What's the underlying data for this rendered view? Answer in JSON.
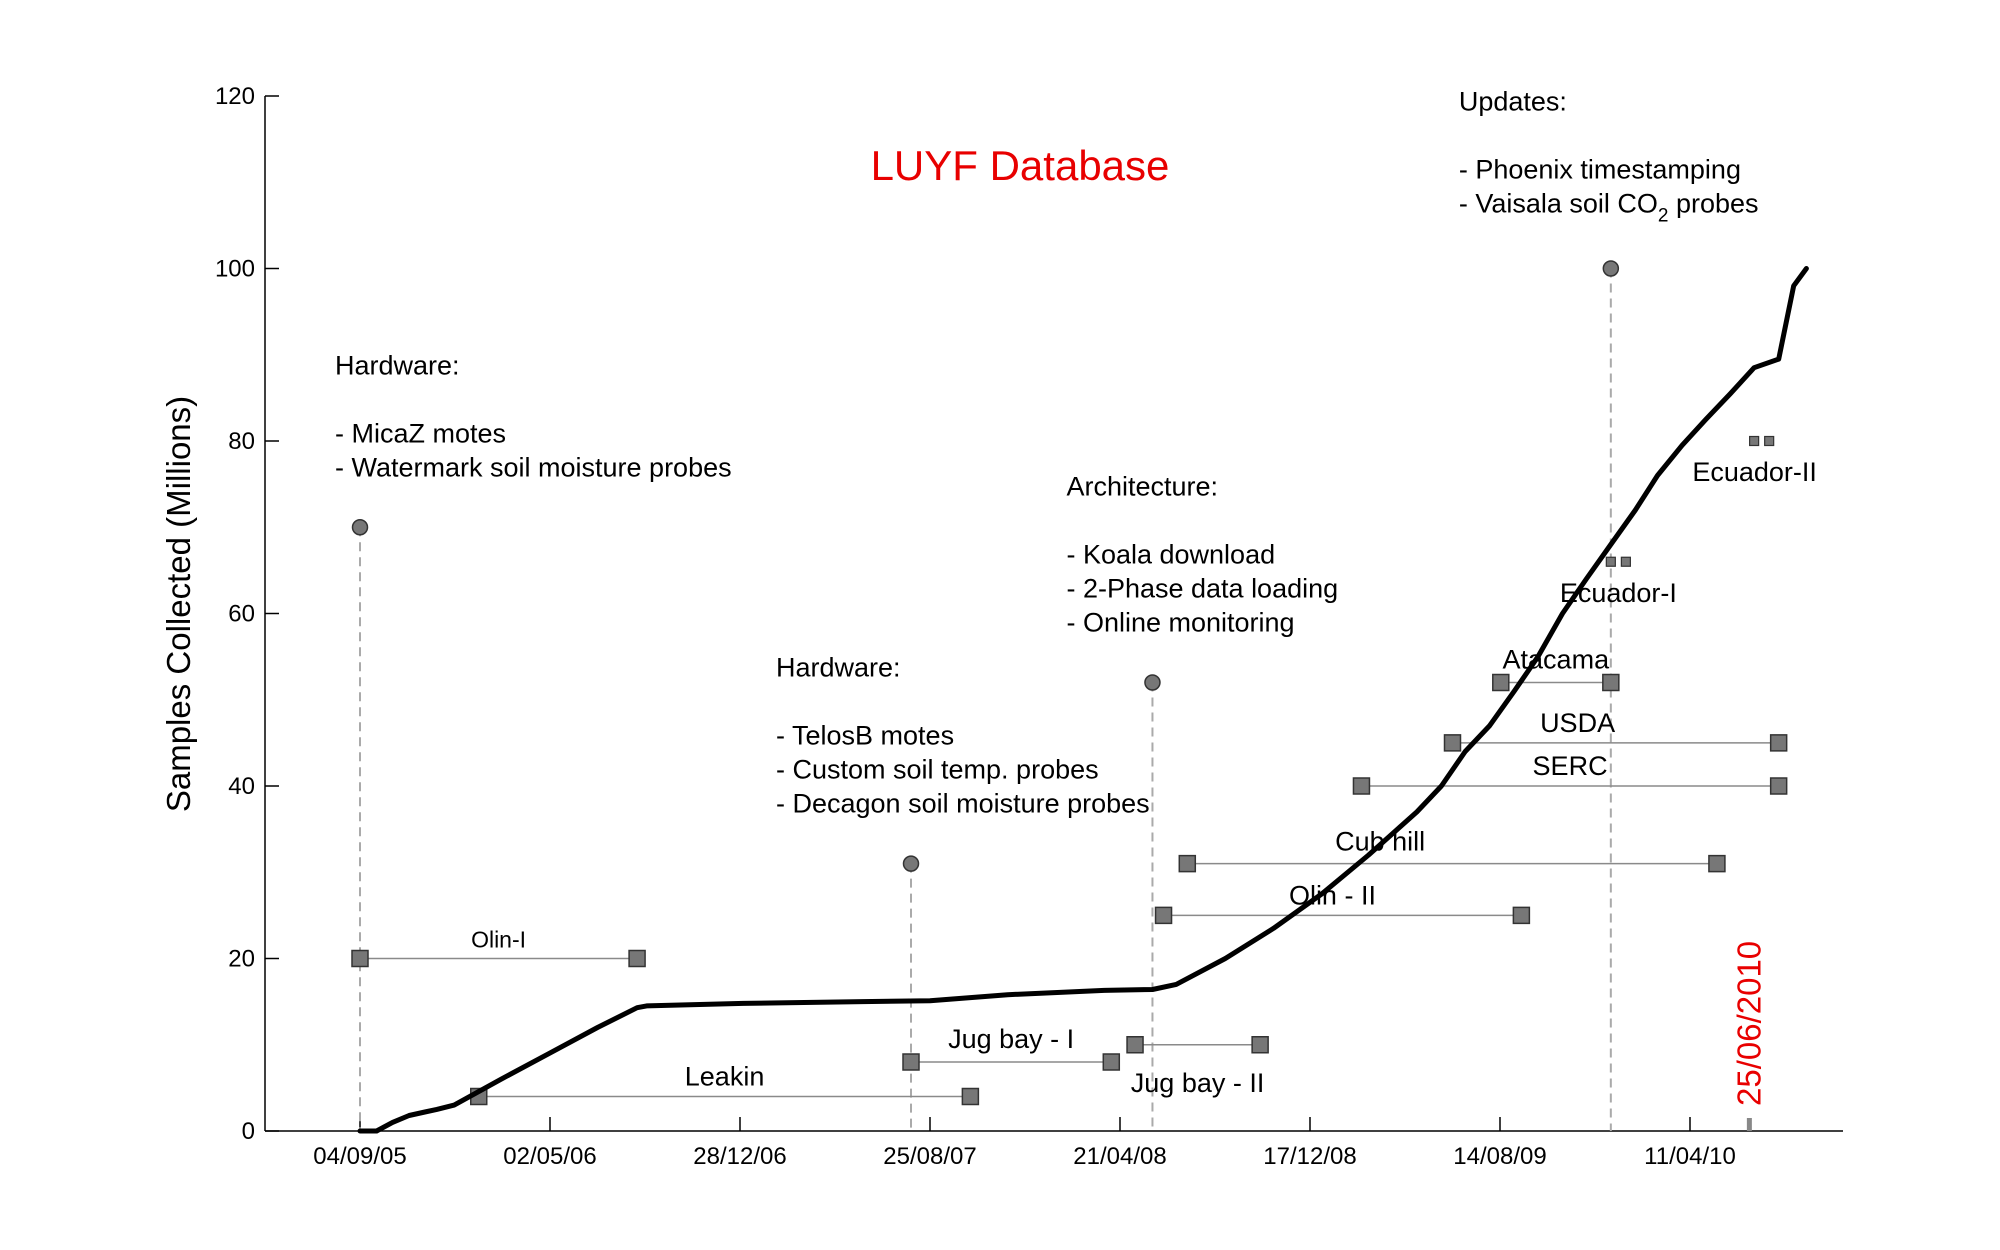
{
  "chart_data": {
    "type": "line",
    "title": "LUYF Database",
    "ylabel": "Samples Collected (Millions)",
    "xlabel": "",
    "ylim": [
      0,
      120
    ],
    "y_ticks": [
      0,
      20,
      40,
      60,
      80,
      100,
      120
    ],
    "x_tick_labels": [
      "04/09/05",
      "02/05/06",
      "28/12/06",
      "25/08/07",
      "21/04/08",
      "17/12/08",
      "14/08/09",
      "11/04/10"
    ],
    "grid": false,
    "series": [
      {
        "values_desc": "cumulative samples collected",
        "points": [
          [
            "2005-09-04",
            0
          ],
          [
            "2005-09-25",
            0
          ],
          [
            "2005-10-15",
            1
          ],
          [
            "2005-11-05",
            1.8
          ],
          [
            "2005-11-25",
            2.2
          ],
          [
            "2005-12-10",
            2.5
          ],
          [
            "2006-01-01",
            3
          ],
          [
            "2006-03-01",
            6
          ],
          [
            "2006-05-01",
            9
          ],
          [
            "2006-07-01",
            12
          ],
          [
            "2006-08-20",
            14.3
          ],
          [
            "2006-09-01",
            14.5
          ],
          [
            "2007-01-01",
            14.8
          ],
          [
            "2007-06-01",
            15
          ],
          [
            "2007-08-25",
            15.1
          ],
          [
            "2007-12-01",
            15.8
          ],
          [
            "2008-04-01",
            16.3
          ],
          [
            "2008-06-01",
            16.4
          ],
          [
            "2008-07-01",
            17
          ],
          [
            "2008-09-01",
            20
          ],
          [
            "2008-11-01",
            23.5
          ],
          [
            "2009-01-01",
            27.5
          ],
          [
            "2009-03-01",
            32
          ],
          [
            "2009-05-01",
            37
          ],
          [
            "2009-06-01",
            40
          ],
          [
            "2009-07-01",
            44
          ],
          [
            "2009-08-01",
            47
          ],
          [
            "2009-09-01",
            51
          ],
          [
            "2009-10-01",
            55
          ],
          [
            "2009-11-01",
            60
          ],
          [
            "2009-12-01",
            64
          ],
          [
            "2010-01-01",
            68
          ],
          [
            "2010-02-01",
            72
          ],
          [
            "2010-03-01",
            76
          ],
          [
            "2010-04-01",
            79.5
          ],
          [
            "2010-05-01",
            82.5
          ],
          [
            "2010-06-01",
            85.5
          ],
          [
            "2010-07-01",
            88.5
          ],
          [
            "2010-08-01",
            89.5
          ],
          [
            "2010-08-20",
            98
          ],
          [
            "2010-09-05",
            100
          ]
        ]
      }
    ],
    "projects": [
      {
        "label": "Olin-I",
        "y": 20,
        "start": "2005-09-04",
        "end": "2006-08-20",
        "label_size": "small"
      },
      {
        "label": "Leakin",
        "y": 4,
        "start": "2006-02-01",
        "end": "2007-10-15"
      },
      {
        "label": "Jug bay - I",
        "y": 8,
        "start": "2007-08-01",
        "end": "2008-04-10"
      },
      {
        "label": "Jug bay - II",
        "y": 10,
        "start": "2008-05-10",
        "end": "2008-10-15"
      },
      {
        "label": "Olin - II",
        "y": 25,
        "start": "2008-06-15",
        "end": "2009-09-10"
      },
      {
        "label": "Cub hill",
        "y": 31,
        "start": "2008-07-15",
        "end": "2010-05-15"
      },
      {
        "label": "SERC",
        "y": 40,
        "start": "2009-02-20",
        "end": "2010-08-01"
      },
      {
        "label": "USDA",
        "y": 45,
        "start": "2009-06-15",
        "end": "2010-08-01"
      },
      {
        "label": "Atacama",
        "y": 52,
        "start": "2009-08-15",
        "end": "2010-01-01"
      },
      {
        "label": "Ecuador-I",
        "y": 66,
        "start": "2010-01-01",
        "end": "2010-01-20",
        "small_markers": true
      },
      {
        "label": "Ecuador-II",
        "y": 80,
        "start": "2010-07-01",
        "end": "2010-07-20",
        "small_markers": true
      }
    ],
    "milestones": [
      {
        "date": "2005-09-04",
        "y": 70,
        "heading": "Hardware:",
        "items": [
          "- MicaZ motes",
          "- Watermark soil moisture probes"
        ]
      },
      {
        "date": "2007-08-01",
        "y": 31,
        "heading": "Hardware:",
        "items": [
          "- TelosB motes",
          "- Custom soil temp. probes",
          "- Decagon soil moisture probes"
        ]
      },
      {
        "date": "2008-06-01",
        "y": 52,
        "heading": "Architecture:",
        "items": [
          "- Koala download",
          "- 2-Phase data loading",
          "- Online monitoring"
        ]
      },
      {
        "date": "2010-01-01",
        "y": 100,
        "heading": "Updates:",
        "items": [
          "- Phoenix timestamping",
          "- Vaisala soil CO₂ probes"
        ]
      }
    ],
    "current_date_marker": "25/06/2010",
    "colors": {
      "line": "#000000",
      "marker_fill": "#777777",
      "title": "#e80000",
      "date_marker": "#e80000",
      "dashed": "#aaaaaa"
    }
  }
}
